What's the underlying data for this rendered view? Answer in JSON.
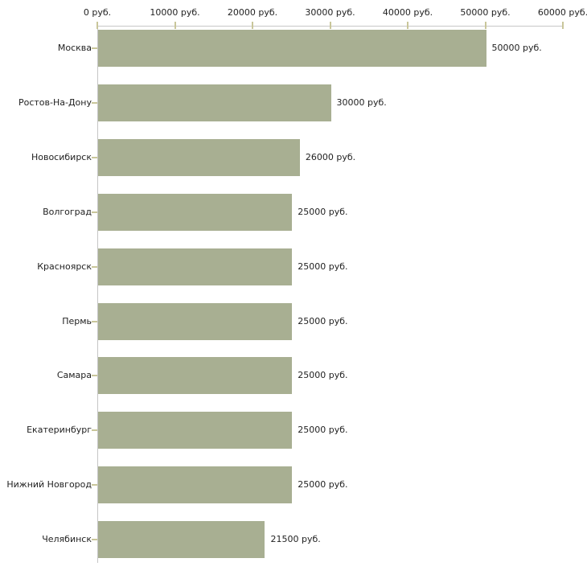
{
  "chart_data": {
    "type": "bar",
    "orientation": "horizontal",
    "title": "",
    "categories": [
      "Москва",
      "Ростов-На-Дону",
      "Новосибирск",
      "Волгоград",
      "Красноярск",
      "Пермь",
      "Самара",
      "Екатеринбург",
      "Нижний Новгород",
      "Челябинск"
    ],
    "values": [
      50000,
      30000,
      26000,
      25000,
      25000,
      25000,
      25000,
      25000,
      25000,
      21500
    ],
    "value_labels": [
      "50000 руб.",
      "30000 руб.",
      "26000 руб.",
      "25000 руб.",
      "25000 руб.",
      "25000 руб.",
      "25000 руб.",
      "25000 руб.",
      "25000 руб.",
      "21500 руб."
    ],
    "xlabel": "",
    "ylabel": "",
    "x_axis": {
      "position": "top",
      "range": [
        0,
        60000
      ],
      "ticks": [
        0,
        10000,
        20000,
        30000,
        40000,
        50000,
        60000
      ],
      "tick_labels": [
        "0 руб.",
        "10000 руб.",
        "20000 руб.",
        "30000 руб.",
        "40000 руб.",
        "50000 руб.",
        "60000 руб."
      ]
    },
    "grid": false,
    "legend": false,
    "colors": {
      "bar": "#a8af92",
      "axis_line": "#c6c6c6",
      "tick_mark": "#c9c69a",
      "text": "#222222",
      "background": "#ffffff"
    }
  }
}
